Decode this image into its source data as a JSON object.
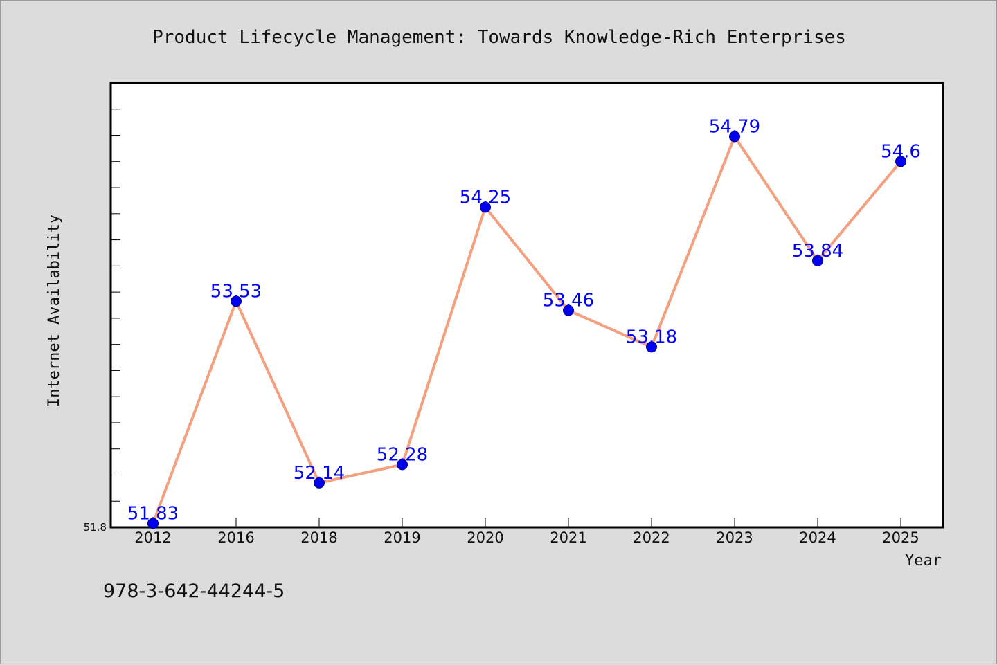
{
  "footer_code": "978-3-642-44244-5",
  "colors": {
    "background": "#dcdcdc",
    "plot_background": "#ffffff",
    "line": "#f4a07f",
    "marker": "#0000ee",
    "data_label": "#0000ff"
  },
  "chart_data": {
    "type": "line",
    "title": "Product Lifecycle Management: Towards Knowledge-Rich Enterprises",
    "xlabel": "Year",
    "ylabel": "Internet Availability",
    "categories": [
      "2012",
      "2016",
      "2018",
      "2019",
      "2020",
      "2021",
      "2022",
      "2023",
      "2024",
      "2025"
    ],
    "series": [
      {
        "values": [
          51.83,
          53.53,
          52.14,
          52.28,
          54.25,
          53.46,
          53.18,
          54.79,
          53.84,
          54.6
        ],
        "labels": [
          "51.83",
          "53.53",
          "52.14",
          "52.28",
          "54.25",
          "53.46",
          "53.18",
          "54.79",
          "53.84",
          "54.6"
        ]
      }
    ],
    "ylim": [
      51.8,
      55.2
    ],
    "y_tick_label": "51.8",
    "y_minor_tick_step": 0.2,
    "grid": false,
    "legend": "none"
  }
}
